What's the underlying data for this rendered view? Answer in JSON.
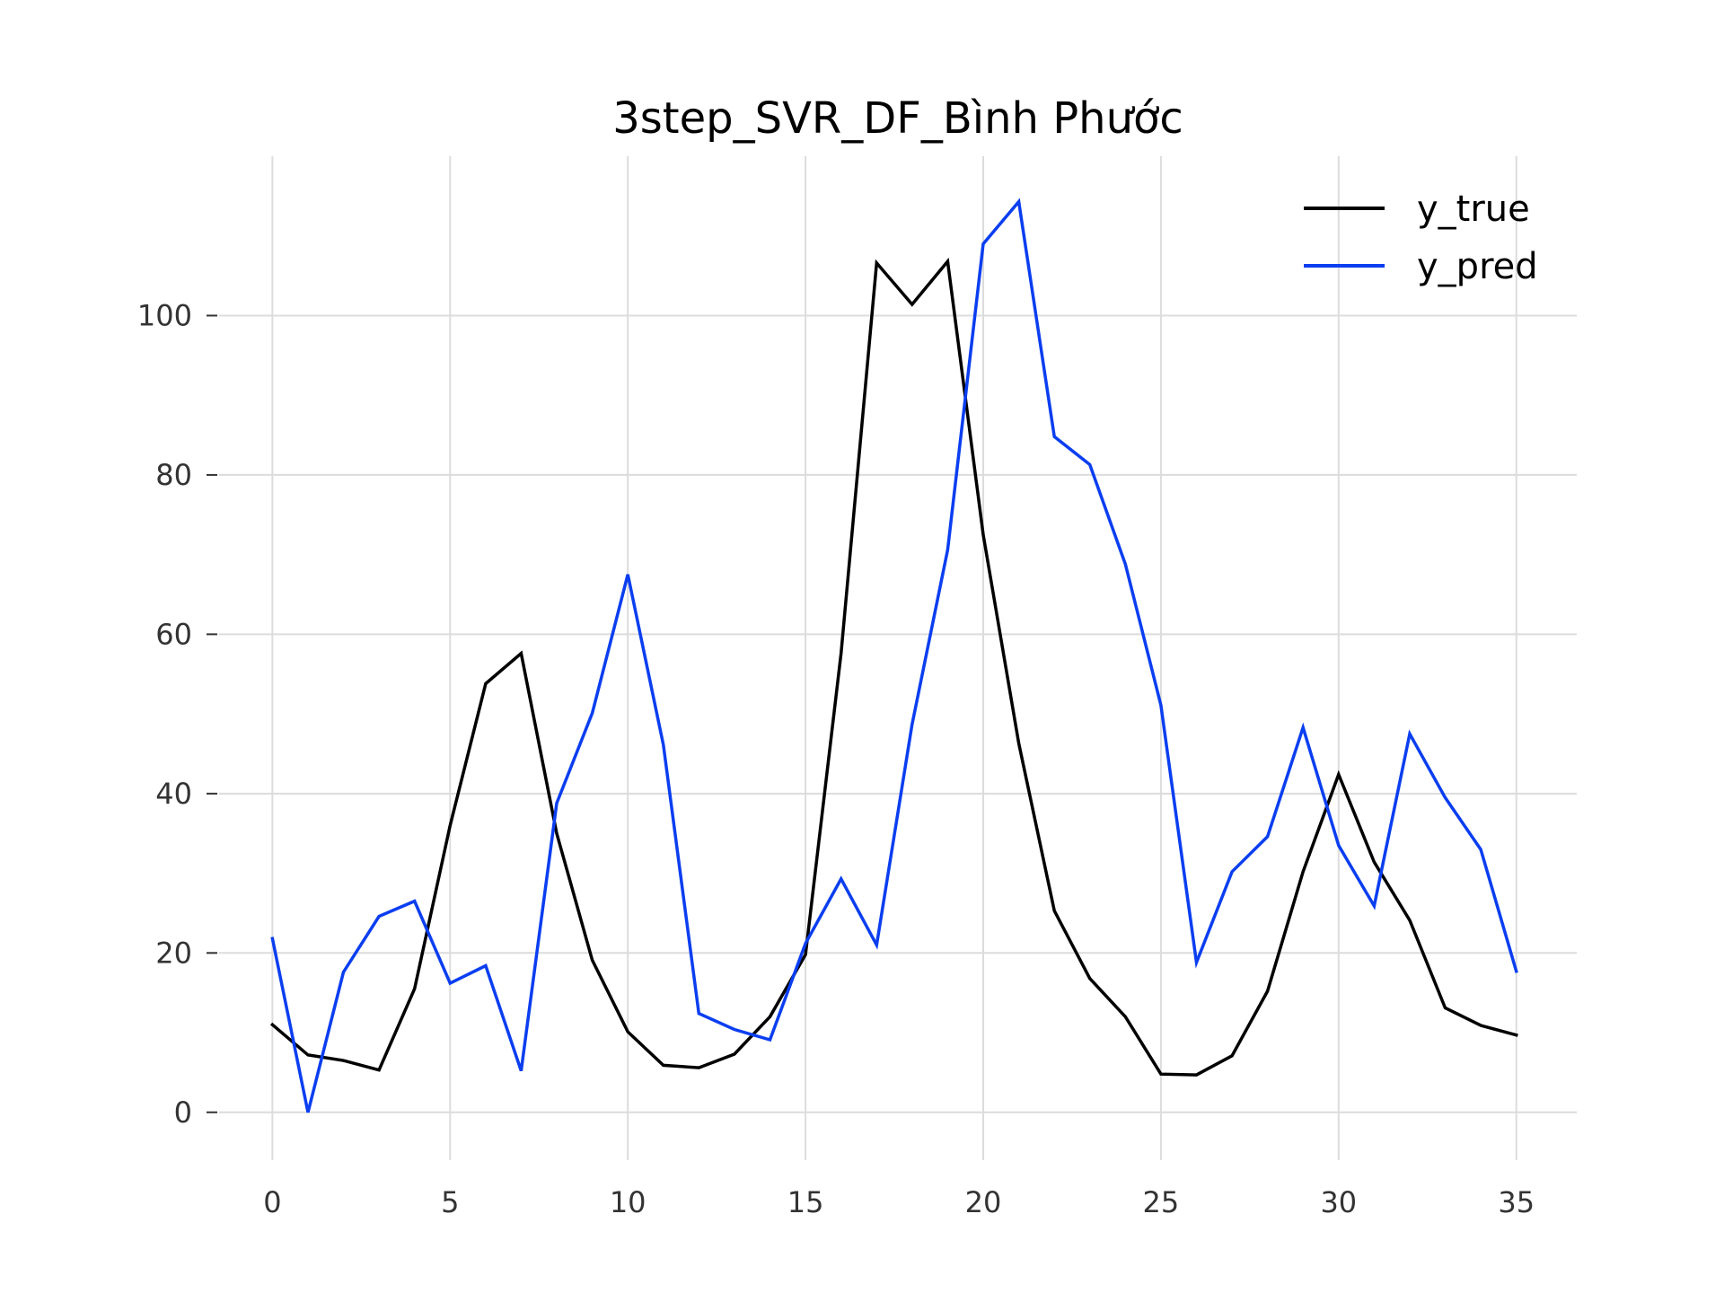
{
  "chart_data": {
    "type": "line",
    "title": "3step_SVR_DF_Bình Phước",
    "xlabel": "",
    "ylabel": "",
    "xlim": [
      -1.5,
      36.7
    ],
    "ylim": [
      -6,
      120
    ],
    "xticks": [
      0,
      5,
      10,
      15,
      20,
      25,
      30,
      35
    ],
    "yticks": [
      0,
      20,
      40,
      60,
      80,
      100
    ],
    "grid": true,
    "legend_position": "top-right",
    "x": [
      0,
      1,
      2,
      3,
      4,
      5,
      6,
      7,
      8,
      9,
      10,
      11,
      12,
      13,
      14,
      15,
      16,
      17,
      18,
      19,
      20,
      21,
      22,
      23,
      24,
      25,
      26,
      27,
      28,
      29,
      30,
      31,
      32,
      33,
      34,
      35
    ],
    "series": [
      {
        "name": "y_true",
        "color": "#000000",
        "values": [
          11.0,
          7.2,
          6.5,
          5.3,
          15.5,
          36.0,
          53.8,
          57.6,
          35.0,
          19.1,
          10.1,
          5.9,
          5.6,
          7.3,
          12.0,
          19.8,
          57.6,
          106.6,
          101.4,
          106.8,
          72.5,
          46.3,
          25.3,
          16.8,
          12.0,
          4.8,
          4.7,
          7.1,
          15.2,
          30.2,
          42.4,
          31.4,
          24.1,
          13.1,
          10.9,
          9.7
        ]
      },
      {
        "name": "y_pred",
        "color": "#0a3ef0",
        "values": [
          21.8,
          0.0,
          17.6,
          24.6,
          26.5,
          16.2,
          18.4,
          5.2,
          38.8,
          50.1,
          67.5,
          46.1,
          12.4,
          10.4,
          9.1,
          21.2,
          29.3,
          21.0,
          48.7,
          70.6,
          109.0,
          114.3,
          84.8,
          81.3,
          68.8,
          51.1,
          18.8,
          30.2,
          34.6,
          48.3,
          33.5,
          25.9,
          47.5,
          39.5,
          33.0,
          17.7
        ]
      }
    ]
  }
}
